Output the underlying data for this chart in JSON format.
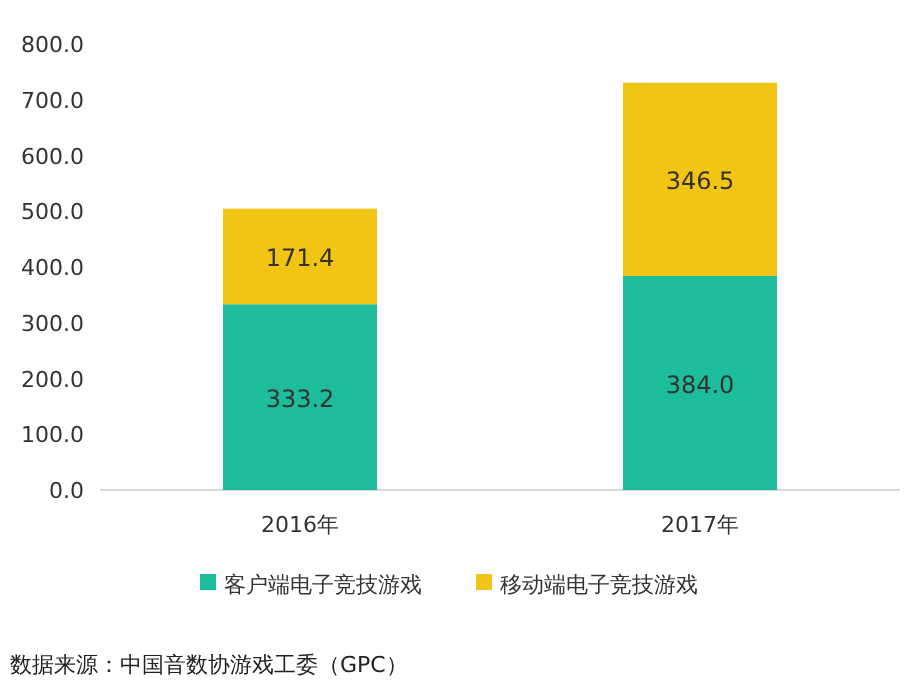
{
  "chart_data": {
    "type": "bar",
    "stacked": true,
    "categories": [
      "2016年",
      "2017年"
    ],
    "series": [
      {
        "name": "客户端电子竞技游戏",
        "color": "#1dbc9a",
        "values": [
          333.2,
          384.0
        ],
        "value_labels": [
          "333.2",
          "384.0"
        ]
      },
      {
        "name": "移动端电子竞技游戏",
        "color": "#f2c414",
        "values": [
          171.4,
          346.5
        ],
        "value_labels": [
          "171.4",
          "346.5"
        ]
      }
    ],
    "ylim": [
      0,
      800
    ],
    "yticks": [
      {
        "value": 0,
        "label": "0.0"
      },
      {
        "value": 100,
        "label": "100.0"
      },
      {
        "value": 200,
        "label": "200.0"
      },
      {
        "value": 300,
        "label": "300.0"
      },
      {
        "value": 400,
        "label": "400.0"
      },
      {
        "value": 500,
        "label": "500.0"
      },
      {
        "value": 600,
        "label": "600.0"
      },
      {
        "value": 700,
        "label": "700.0"
      },
      {
        "value": 800,
        "label": "800.0"
      }
    ],
    "grid": false,
    "legend": "bottom",
    "annotations": [
      "数据来源：中国音数协游戏工委（GPC）"
    ]
  }
}
